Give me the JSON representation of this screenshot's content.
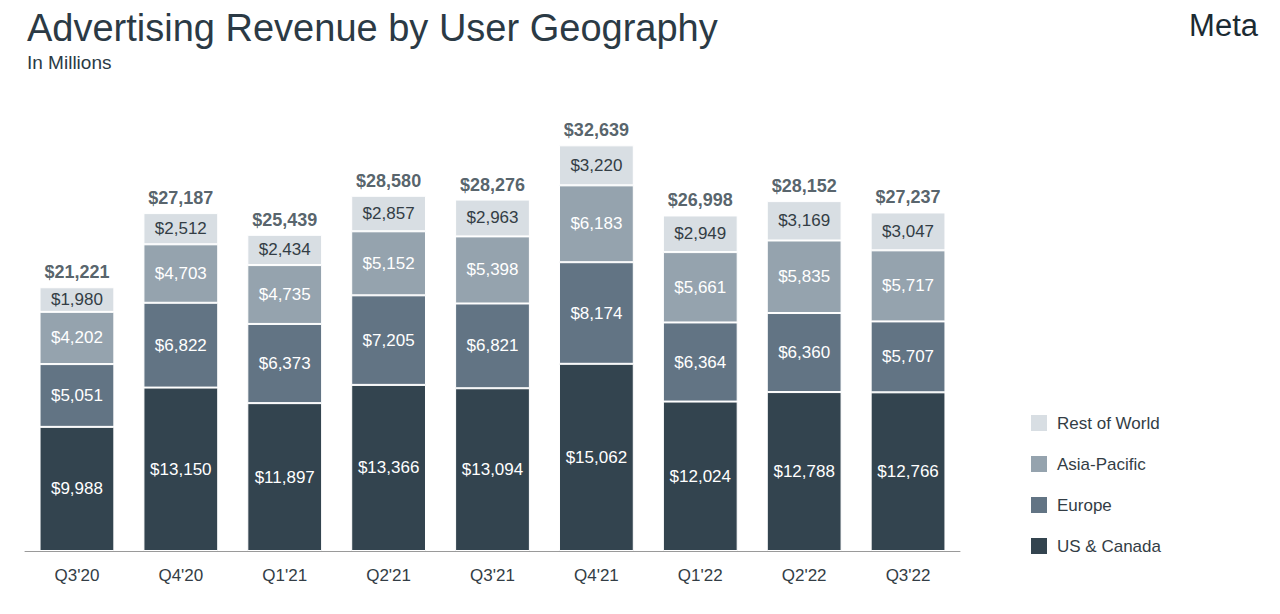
{
  "chart_data": {
    "type": "bar",
    "title": "Advertising Revenue by User Geography",
    "subtitle": "In Millions",
    "annotations": [
      "Meta"
    ],
    "categories": [
      "Q3'20",
      "Q4'20",
      "Q1'21",
      "Q2'21",
      "Q3'21",
      "Q4'21",
      "Q1'22",
      "Q2'22",
      "Q3'22"
    ],
    "series": [
      {
        "name": "US & Canada",
        "color": "#33444f",
        "values": [
          9988,
          13150,
          11897,
          13366,
          13094,
          15062,
          12024,
          12788,
          12766
        ],
        "value_labels": [
          "$9,988",
          "$13,150",
          "$11,897",
          "$13,366",
          "$13,094",
          "$15,062",
          "$12,024",
          "$12,788",
          "$12,766"
        ]
      },
      {
        "name": "Europe",
        "color": "#627484",
        "values": [
          5051,
          6822,
          6373,
          7205,
          6821,
          8174,
          6364,
          6360,
          5707
        ],
        "value_labels": [
          "$5,051",
          "$6,822",
          "$6,373",
          "$7,205",
          "$6,821",
          "$8,174",
          "$6,364",
          "$6,360",
          "$5,707"
        ]
      },
      {
        "name": "Asia-Pacific",
        "color": "#95a3ae",
        "values": [
          4202,
          4703,
          4735,
          5152,
          5398,
          6183,
          5661,
          5835,
          5717
        ],
        "value_labels": [
          "$4,202",
          "$4,703",
          "$4,735",
          "$5,152",
          "$5,398",
          "$6,183",
          "$5,661",
          "$5,835",
          "$5,717"
        ]
      },
      {
        "name": "Rest of World",
        "color": "#d8dee3",
        "values": [
          1980,
          2512,
          2434,
          2857,
          2963,
          3220,
          2949,
          3169,
          3047
        ],
        "value_labels": [
          "$1,980",
          "$2,512",
          "$2,434",
          "$2,857",
          "$2,963",
          "$3,220",
          "$2,949",
          "$3,169",
          "$3,047"
        ]
      }
    ],
    "totals": [
      21221,
      27187,
      25439,
      28580,
      28276,
      32639,
      26998,
      28152,
      27237
    ],
    "total_labels": [
      "$21,221",
      "$27,187",
      "$25,439",
      "$28,580",
      "$28,276",
      "$32,639",
      "$26,998",
      "$28,152",
      "$27,237"
    ],
    "ylim": [
      0,
      35000
    ],
    "stacked": true,
    "data_labels": true,
    "grid": false,
    "tick_labels": "x",
    "legend": "right"
  }
}
